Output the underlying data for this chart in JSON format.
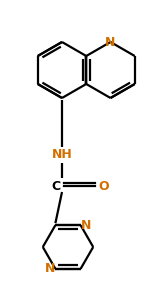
{
  "background_color": "#ffffff",
  "bond_color": "#000000",
  "nitrogen_color": "#d07000",
  "figsize": [
    1.63,
    3.05
  ],
  "dpi": 100,
  "xlim": [
    0,
    163
  ],
  "ylim": [
    0,
    305
  ]
}
